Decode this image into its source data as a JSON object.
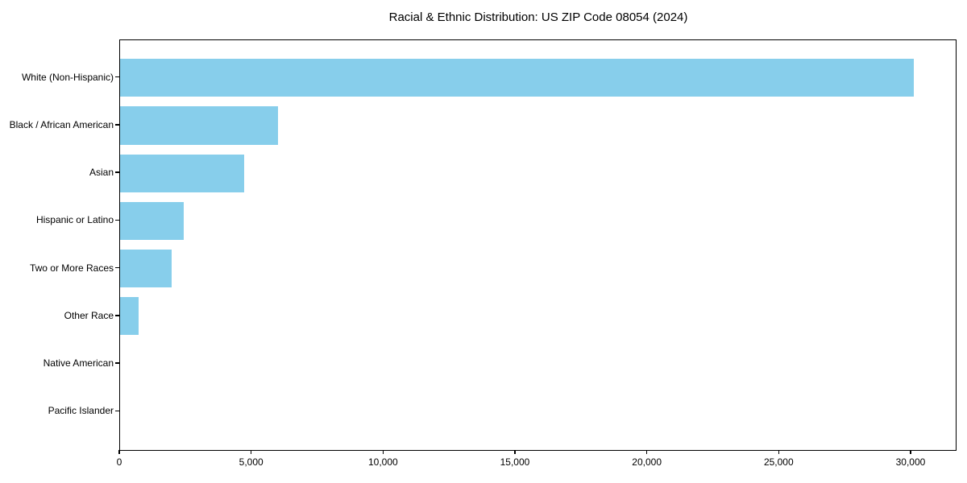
{
  "chart_data": {
    "type": "bar",
    "orientation": "horizontal",
    "title": "Racial & Ethnic Distribution: US ZIP Code 08054 (2024)",
    "xlabel": "",
    "ylabel": "",
    "categories": [
      "White (Non-Hispanic)",
      "Black / African American",
      "Asian",
      "Hispanic or Latino",
      "Two or More Races",
      "Other Race",
      "Native American",
      "Pacific Islander"
    ],
    "values": [
      30100,
      6000,
      4700,
      2400,
      1950,
      700,
      0,
      0
    ],
    "xlim": [
      0,
      31650
    ],
    "xticks": [
      0,
      5000,
      10000,
      15000,
      20000,
      25000,
      30000
    ],
    "xtick_labels": [
      "0",
      "5,000",
      "10,000",
      "15,000",
      "20,000",
      "25,000",
      "30,000"
    ],
    "bar_color": "#87CEEB",
    "spine_color": "#000000",
    "text_color": "#000000",
    "grid": false,
    "legend": null
  }
}
